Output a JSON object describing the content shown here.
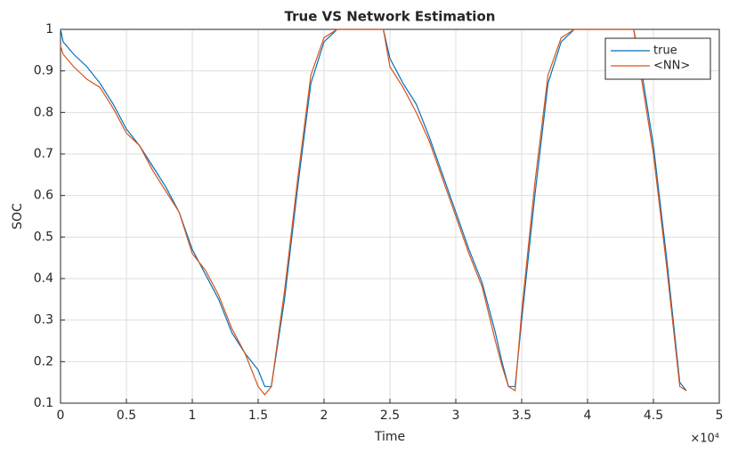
{
  "chart_data": {
    "type": "line",
    "title": "True VS Network Estimation",
    "x_label": "Time",
    "y_label": "SOC",
    "x_exponent_label": "×10⁴",
    "x": [
      0,
      0.02,
      0.1,
      0.2,
      0.3,
      0.4,
      0.5,
      0.6,
      0.7,
      0.8,
      0.9,
      1.0,
      1.1,
      1.2,
      1.3,
      1.4,
      1.5,
      1.55,
      1.6,
      1.7,
      1.8,
      1.9,
      2.0,
      2.1,
      2.2,
      2.3,
      2.4,
      2.45,
      2.5,
      2.6,
      2.7,
      2.8,
      2.9,
      3.0,
      3.1,
      3.2,
      3.3,
      3.35,
      3.4,
      3.45,
      3.5,
      3.6,
      3.7,
      3.8,
      3.9,
      4.0,
      4.1,
      4.2,
      4.3,
      4.35,
      4.4,
      4.5,
      4.6,
      4.7,
      4.75
    ],
    "series": [
      {
        "name": "true",
        "color": "#0072bd",
        "values": [
          1.0,
          0.97,
          0.94,
          0.91,
          0.87,
          0.82,
          0.76,
          0.72,
          0.67,
          0.62,
          0.56,
          0.47,
          0.41,
          0.35,
          0.27,
          0.22,
          0.18,
          0.14,
          0.14,
          0.35,
          0.62,
          0.87,
          0.97,
          1,
          1,
          1,
          1,
          1,
          0.93,
          0.87,
          0.82,
          0.74,
          0.65,
          0.56,
          0.47,
          0.39,
          0.27,
          0.2,
          0.14,
          0.14,
          0.3,
          0.6,
          0.87,
          0.97,
          1,
          1,
          1,
          1,
          1,
          1,
          0.92,
          0.72,
          0.45,
          0.15,
          0.13
        ]
      },
      {
        "name": "<NN>",
        "color": "#d95319",
        "values": [
          0.96,
          0.94,
          0.91,
          0.88,
          0.86,
          0.81,
          0.75,
          0.72,
          0.66,
          0.61,
          0.56,
          0.46,
          0.42,
          0.36,
          0.28,
          0.22,
          0.14,
          0.12,
          0.14,
          0.37,
          0.64,
          0.89,
          0.98,
          1,
          1,
          1,
          1,
          1,
          0.91,
          0.86,
          0.8,
          0.73,
          0.64,
          0.55,
          0.46,
          0.38,
          0.25,
          0.19,
          0.14,
          0.13,
          0.32,
          0.63,
          0.89,
          0.98,
          1,
          1,
          1,
          1,
          1,
          1,
          0.9,
          0.7,
          0.43,
          0.14,
          0.13
        ]
      }
    ],
    "xlim": [
      0,
      5
    ],
    "xticks": [
      0,
      0.5,
      1,
      1.5,
      2,
      2.5,
      3,
      3.5,
      4,
      4.5,
      5
    ],
    "ylim": [
      0.1,
      1
    ],
    "yticks": [
      0.1,
      0.2,
      0.3,
      0.4,
      0.5,
      0.6,
      0.7,
      0.8,
      0.9,
      1
    ],
    "grid": true,
    "legend": "northeast"
  }
}
